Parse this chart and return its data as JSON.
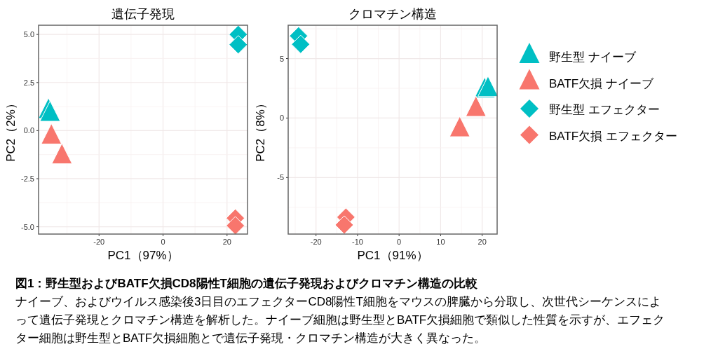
{
  "chart_data": [
    {
      "type": "scatter",
      "title": "遺伝子発現",
      "xlabel": "PC1（97%）",
      "ylabel": "PC2（2%）",
      "xlim": [
        -38.9,
        26.4
      ],
      "ylim": [
        -5.38,
        5.48
      ],
      "xticks": [
        -20,
        0,
        20
      ],
      "yticks": [
        {
          "value": -5,
          "label": "-5.0"
        },
        {
          "value": -2.5,
          "label": "-2.5"
        },
        {
          "value": 0,
          "label": "0.0"
        },
        {
          "value": 2.5,
          "label": "2.5"
        },
        {
          "value": 5,
          "label": "5.0"
        }
      ],
      "grid": true,
      "legend": false,
      "series": [
        {
          "color": "#00bfc4",
          "marker": "triangle",
          "x": [
            -35.8,
            -35.3
          ],
          "values": [
            1.0,
            0.85
          ]
        },
        {
          "color": "#f8766d",
          "marker": "triangle",
          "x": [
            -34.9,
            -31.6
          ],
          "values": [
            -0.33,
            -1.36
          ]
        },
        {
          "color": "#00bfc4",
          "marker": "diamond",
          "x": [
            23.5,
            23.5
          ],
          "values": [
            5.0,
            4.47
          ]
        },
        {
          "color": "#f8766d",
          "marker": "diamond",
          "x": [
            22.6,
            22.6
          ],
          "values": [
            -4.55,
            -4.94
          ]
        }
      ],
      "annotations": [
        "図1：野生型およびBATF欠損CD8陽性T細胞の遺伝子発現およびクロマチン構造の比較",
        "ナイーブ、およびウイルス感染後3日目のエフェクターCD8陽性T細胞をマウスの脾臓から分取し、次世代シーケンスによって遺伝子発現とクロマチン構造を解析した。ナイーブ細胞は野生型とBATF欠損細胞で類似した性質を示すが、エフェクター細胞は野生型とBATF欠損細胞とで遺伝子発現・クロマチン構造が大きく異なった。"
      ]
    },
    {
      "type": "scatter",
      "title": "クロマチン構造",
      "xlabel": "PC1（91%）",
      "ylabel": "PC2（8%）",
      "xlim": [
        -26.7,
        23.6
      ],
      "ylim": [
        -9.75,
        7.8
      ],
      "xticks": [
        -20,
        -10,
        0,
        10,
        20
      ],
      "yticks": [
        -5,
        0,
        5
      ],
      "grid": true,
      "legend": "right",
      "series": [
        {
          "name": "野生型 ナイーブ",
          "color": "#00bfc4",
          "marker": "triangle",
          "x": [
            20.6,
            21.4
          ],
          "values": [
            2.3,
            2.4
          ]
        },
        {
          "name": "BATF欠損 ナイーブ",
          "color": "#f8766d",
          "marker": "triangle",
          "x": [
            18.5,
            14.6
          ],
          "values": [
            0.73,
            -0.98
          ]
        },
        {
          "name": "野生型 エフェクター",
          "color": "#00bfc4",
          "marker": "diamond",
          "x": [
            -24.2,
            -23.7
          ],
          "values": [
            6.9,
            6.2
          ]
        },
        {
          "name": "BATF欠損 エフェクター",
          "color": "#f8766d",
          "marker": "diamond",
          "x": [
            -12.8,
            -13.2
          ],
          "values": [
            -8.33,
            -8.98
          ]
        }
      ]
    }
  ]
}
